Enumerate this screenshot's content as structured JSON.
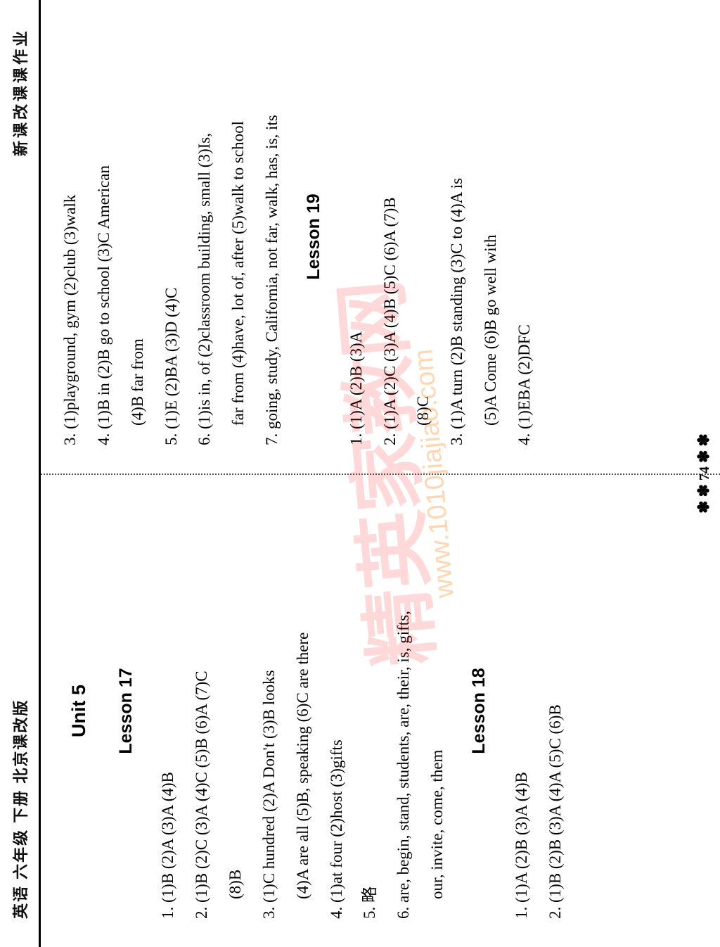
{
  "header": {
    "left": "英语  六年级  下册  北京课改版",
    "right": "新课改课课作业"
  },
  "unitTitle": "Unit 5",
  "left": {
    "lesson17": {
      "title": "Lesson 17",
      "l1": "1. (1)B  (2)A  (3)A  (4)B",
      "l2": "2. (1)B  (2)C  (3)A  (4)C  (5)B  (6)A  (7)C",
      "l2b": "(8)B",
      "l3": "3. (1)C  hundred  (2)A  Don't  (3)B  looks",
      "l3b": "(4)A  are all  (5)B, speaking  (6)C  are there",
      "l4": "4. (1)at four  (2)host  (3)gifts",
      "l5": "5. 略",
      "l6": "6. are, begin, stand, students, are, their, is, gifts,",
      "l6b": "our, invite, come, them"
    },
    "lesson18": {
      "title": "Lesson 18",
      "l1": "1. (1)A  (2)B  (3)A  (4)B",
      "l2": "2. (1)B  (2)B  (3)A  (4)A  (5)C  (6)B"
    }
  },
  "right": {
    "l3": "3. (1)playground, gym  (2)club  (3)walk",
    "l4": "4. (1)B  in  (2)B  go to school  (3)C  American",
    "l4b": "(4)B  far from",
    "l5": "5. (1)E  (2)BA  (3)D  (4)C",
    "l6": "6. (1)is in, of  (2)classroom building, small  (3)Is,",
    "l6b": "far from  (4)have, lot of, after  (5)walk to school",
    "l7": "7. going, study, California, not far, walk, has, is, its",
    "lesson19": {
      "title": "Lesson 19",
      "l1": "1. (1)A  (2)B  (3)A",
      "l2": "2. (1)A  (2)C  (3)A  (4)B  (5)C  (6)A  (7)B",
      "l2b": "(8)C",
      "l3": "3. (1)A  turn  (2)B  standing  (3)C  to  (4)A  is",
      "l3b": "(5)A  Come  (6)B  go well with",
      "l4": "4. (1)EBA  (2)DFC"
    }
  },
  "pageNum": "74",
  "watermark": "精英家教网",
  "watermark2": "www.1010jiajiao.com"
}
